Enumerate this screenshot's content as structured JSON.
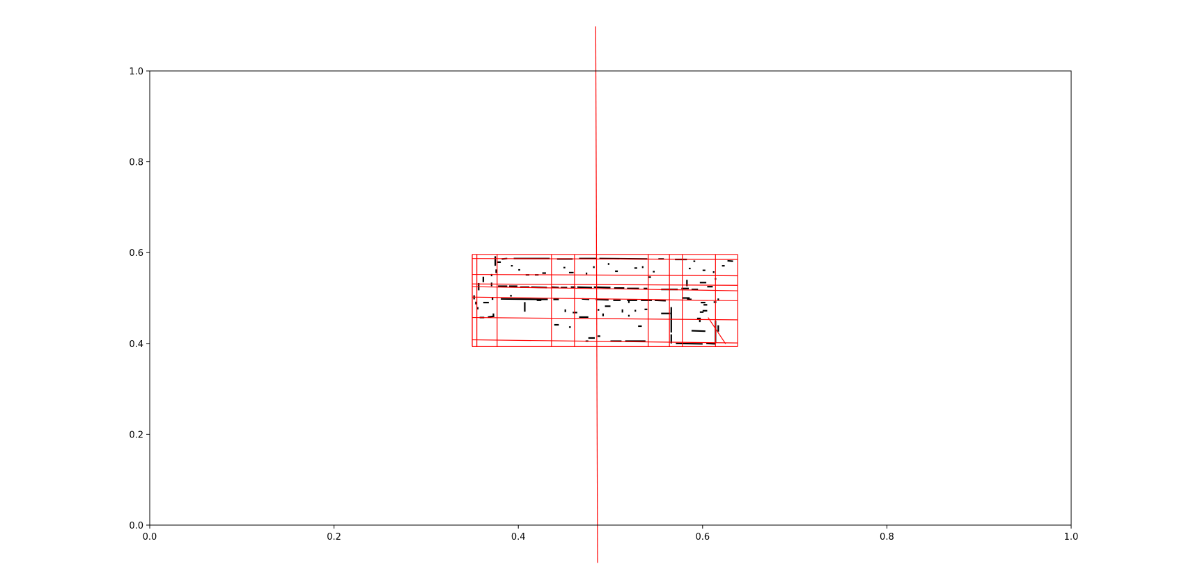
{
  "chart_data": {
    "type": "line",
    "title": "",
    "xlabel": "",
    "ylabel": "",
    "xlim": [
      0.0,
      1.0
    ],
    "ylim": [
      0.0,
      1.0
    ],
    "grid": false,
    "legend": "none",
    "x_ticks": [
      "0.0",
      "0.2",
      "0.4",
      "0.6",
      "0.8",
      "1.0"
    ],
    "y_ticks": [
      "0.0",
      "0.2",
      "0.4",
      "0.6",
      "0.8",
      "1.0"
    ],
    "line_color": "#ff0000",
    "point_color": "#000000",
    "vertical_lines": [
      {
        "x": 0.35,
        "y0": 0.393,
        "y1": 0.596
      },
      {
        "x": 0.355,
        "y0": 0.393,
        "y1": 0.596
      },
      {
        "x": 0.377,
        "y0": 0.393,
        "y1": 0.596
      },
      {
        "x": 0.436,
        "y0": 0.393,
        "y1": 0.596
      },
      {
        "x": 0.461,
        "y0": 0.393,
        "y1": 0.596
      },
      {
        "x": 0.541,
        "y0": 0.393,
        "y1": 0.596
      },
      {
        "x": 0.564,
        "y0": 0.393,
        "y1": 0.596
      },
      {
        "x": 0.578,
        "y0": 0.393,
        "y1": 0.596
      },
      {
        "x": 0.614,
        "y0": 0.393,
        "y1": 0.596
      },
      {
        "x": 0.638,
        "y0": 0.393,
        "y1": 0.596
      }
    ],
    "long_line": {
      "x0": 0.484,
      "y0": 1.098,
      "x1": 0.486,
      "y1": -0.083
    },
    "horizontal_lines": [
      {
        "x0": 0.35,
        "x1": 0.638,
        "y0": 0.596,
        "y1": 0.596
      },
      {
        "x0": 0.35,
        "x1": 0.638,
        "y0": 0.393,
        "y1": 0.393
      },
      {
        "x0": 0.35,
        "x1": 0.638,
        "y0": 0.587,
        "y1": 0.585
      },
      {
        "x0": 0.35,
        "x1": 0.638,
        "y0": 0.552,
        "y1": 0.549
      },
      {
        "x0": 0.35,
        "x1": 0.638,
        "y0": 0.531,
        "y1": 0.528
      },
      {
        "x0": 0.35,
        "x1": 0.638,
        "y0": 0.525,
        "y1": 0.516
      },
      {
        "x0": 0.35,
        "x1": 0.638,
        "y0": 0.502,
        "y1": 0.494
      },
      {
        "x0": 0.35,
        "x1": 0.638,
        "y0": 0.457,
        "y1": 0.452
      },
      {
        "x0": 0.35,
        "x1": 0.638,
        "y0": 0.408,
        "y1": 0.401
      }
    ],
    "diagonal_line": {
      "x0": 0.606,
      "y0": 0.457,
      "x1": 0.625,
      "y1": 0.399
    },
    "point_segments": [
      [
        0.352,
        0.497,
        0.352,
        0.506
      ],
      [
        0.357,
        0.517,
        0.357,
        0.533
      ],
      [
        0.354,
        0.486,
        0.354,
        0.492
      ],
      [
        0.356,
        0.475,
        0.356,
        0.48
      ],
      [
        0.358,
        0.457,
        0.363,
        0.457
      ],
      [
        0.362,
        0.49,
        0.368,
        0.49
      ],
      [
        0.367,
        0.458,
        0.374,
        0.46
      ],
      [
        0.373,
        0.461,
        0.373,
        0.466
      ],
      [
        0.372,
        0.496,
        0.372,
        0.501
      ],
      [
        0.375,
        0.571,
        0.375,
        0.592
      ],
      [
        0.377,
        0.579,
        0.381,
        0.579
      ],
      [
        0.376,
        0.555,
        0.376,
        0.563
      ],
      [
        0.371,
        0.548,
        0.371,
        0.553
      ],
      [
        0.382,
        0.586,
        0.388,
        0.587
      ],
      [
        0.395,
        0.587,
        0.434,
        0.587
      ],
      [
        0.392,
        0.571,
        0.394,
        0.571
      ],
      [
        0.4,
        0.562,
        0.402,
        0.562
      ],
      [
        0.408,
        0.551,
        0.412,
        0.551
      ],
      [
        0.418,
        0.551,
        0.422,
        0.551
      ],
      [
        0.426,
        0.555,
        0.43,
        0.555
      ],
      [
        0.442,
        0.586,
        0.459,
        0.586
      ],
      [
        0.449,
        0.567,
        0.451,
        0.567
      ],
      [
        0.455,
        0.556,
        0.46,
        0.556
      ],
      [
        0.466,
        0.587,
        0.485,
        0.587
      ],
      [
        0.488,
        0.587,
        0.54,
        0.586
      ],
      [
        0.482,
        0.566,
        0.482,
        0.57
      ],
      [
        0.474,
        0.552,
        0.474,
        0.556
      ],
      [
        0.498,
        0.573,
        0.498,
        0.577
      ],
      [
        0.505,
        0.559,
        0.508,
        0.559
      ],
      [
        0.526,
        0.566,
        0.529,
        0.566
      ],
      [
        0.535,
        0.566,
        0.535,
        0.57
      ],
      [
        0.541,
        0.546,
        0.544,
        0.546
      ],
      [
        0.546,
        0.558,
        0.548,
        0.558
      ],
      [
        0.552,
        0.586,
        0.558,
        0.586
      ],
      [
        0.57,
        0.585,
        0.583,
        0.585
      ],
      [
        0.585,
        0.565,
        0.587,
        0.565
      ],
      [
        0.59,
        0.581,
        0.592,
        0.581
      ],
      [
        0.6,
        0.561,
        0.603,
        0.561
      ],
      [
        0.612,
        0.555,
        0.612,
        0.559
      ],
      [
        0.614,
        0.54,
        0.614,
        0.544
      ],
      [
        0.621,
        0.571,
        0.624,
        0.571
      ],
      [
        0.627,
        0.582,
        0.633,
        0.581
      ],
      [
        0.378,
        0.526,
        0.388,
        0.526
      ],
      [
        0.39,
        0.526,
        0.399,
        0.526
      ],
      [
        0.402,
        0.524,
        0.412,
        0.524
      ],
      [
        0.414,
        0.524,
        0.431,
        0.523
      ],
      [
        0.436,
        0.524,
        0.444,
        0.523
      ],
      [
        0.446,
        0.523,
        0.453,
        0.523
      ],
      [
        0.457,
        0.524,
        0.462,
        0.524
      ],
      [
        0.464,
        0.524,
        0.48,
        0.523
      ],
      [
        0.482,
        0.524,
        0.5,
        0.523
      ],
      [
        0.504,
        0.522,
        0.515,
        0.522
      ],
      [
        0.518,
        0.521,
        0.531,
        0.521
      ],
      [
        0.536,
        0.521,
        0.54,
        0.521
      ],
      [
        0.555,
        0.519,
        0.573,
        0.519
      ],
      [
        0.577,
        0.521,
        0.585,
        0.521
      ],
      [
        0.588,
        0.519,
        0.595,
        0.519
      ],
      [
        0.362,
        0.535,
        0.362,
        0.547
      ],
      [
        0.371,
        0.526,
        0.371,
        0.534
      ],
      [
        0.392,
        0.503,
        0.392,
        0.507
      ],
      [
        0.381,
        0.498,
        0.432,
        0.497
      ],
      [
        0.42,
        0.495,
        0.425,
        0.495
      ],
      [
        0.438,
        0.497,
        0.444,
        0.497
      ],
      [
        0.469,
        0.498,
        0.477,
        0.497
      ],
      [
        0.484,
        0.497,
        0.498,
        0.496
      ],
      [
        0.503,
        0.495,
        0.511,
        0.495
      ],
      [
        0.518,
        0.495,
        0.529,
        0.495
      ],
      [
        0.533,
        0.495,
        0.545,
        0.495
      ],
      [
        0.548,
        0.495,
        0.56,
        0.494
      ],
      [
        0.578,
        0.5,
        0.586,
        0.5
      ],
      [
        0.583,
        0.497,
        0.588,
        0.497
      ],
      [
        0.598,
        0.49,
        0.603,
        0.49
      ],
      [
        0.612,
        0.491,
        0.615,
        0.491
      ],
      [
        0.617,
        0.499,
        0.617,
        0.495
      ],
      [
        0.407,
        0.47,
        0.407,
        0.491
      ],
      [
        0.451,
        0.469,
        0.451,
        0.475
      ],
      [
        0.459,
        0.468,
        0.464,
        0.468
      ],
      [
        0.466,
        0.458,
        0.476,
        0.458
      ],
      [
        0.487,
        0.472,
        0.487,
        0.476
      ],
      [
        0.492,
        0.46,
        0.492,
        0.466
      ],
      [
        0.494,
        0.482,
        0.5,
        0.482
      ],
      [
        0.513,
        0.468,
        0.513,
        0.475
      ],
      [
        0.52,
        0.459,
        0.52,
        0.463
      ],
      [
        0.527,
        0.47,
        0.527,
        0.474
      ],
      [
        0.537,
        0.475,
        0.54,
        0.475
      ],
      [
        0.555,
        0.466,
        0.565,
        0.466
      ],
      [
        0.566,
        0.424,
        0.566,
        0.48
      ],
      [
        0.566,
        0.4,
        0.566,
        0.42
      ],
      [
        0.571,
        0.4,
        0.6,
        0.399
      ],
      [
        0.588,
        0.428,
        0.603,
        0.427
      ],
      [
        0.594,
        0.455,
        0.598,
        0.455
      ],
      [
        0.597,
        0.447,
        0.597,
        0.455
      ],
      [
        0.597,
        0.469,
        0.601,
        0.469
      ],
      [
        0.6,
        0.472,
        0.605,
        0.472
      ],
      [
        0.601,
        0.485,
        0.605,
        0.485
      ],
      [
        0.604,
        0.4,
        0.614,
        0.399
      ],
      [
        0.614,
        0.401,
        0.614,
        0.45
      ],
      [
        0.617,
        0.426,
        0.617,
        0.44
      ],
      [
        0.583,
        0.526,
        0.583,
        0.54
      ],
      [
        0.597,
        0.534,
        0.604,
        0.534
      ],
      [
        0.605,
        0.525,
        0.611,
        0.525
      ],
      [
        0.439,
        0.441,
        0.444,
        0.441
      ],
      [
        0.476,
        0.412,
        0.483,
        0.412
      ],
      [
        0.486,
        0.416,
        0.489,
        0.416
      ],
      [
        0.5,
        0.405,
        0.512,
        0.405
      ],
      [
        0.516,
        0.405,
        0.538,
        0.405
      ],
      [
        0.53,
        0.438,
        0.534,
        0.438
      ],
      [
        0.52,
        0.489,
        0.52,
        0.494
      ],
      [
        0.473,
        0.405,
        0.476,
        0.405
      ],
      [
        0.455,
        0.436,
        0.457,
        0.436
      ]
    ]
  }
}
